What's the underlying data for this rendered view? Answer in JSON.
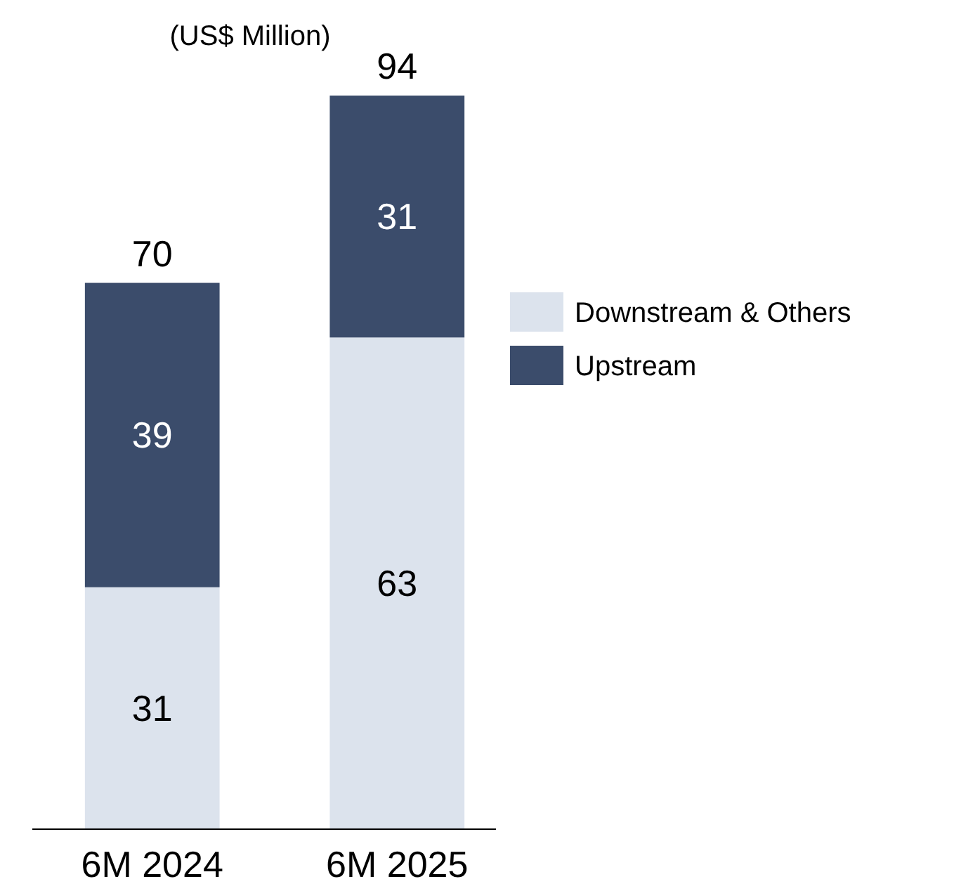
{
  "chart_data": {
    "type": "bar",
    "title": "(US$ Million)",
    "categories": [
      "6M 2024",
      "6M 2025"
    ],
    "stacked": true,
    "data_labels": true,
    "totals": [
      "70",
      "94"
    ],
    "legend": "right",
    "series": [
      {
        "name": "Downstream & Others",
        "color": "#dce3ed",
        "values": [
          31,
          63
        ]
      },
      {
        "name": "Upstream",
        "color": "#3b4c6b",
        "values": [
          39,
          31
        ]
      }
    ]
  }
}
